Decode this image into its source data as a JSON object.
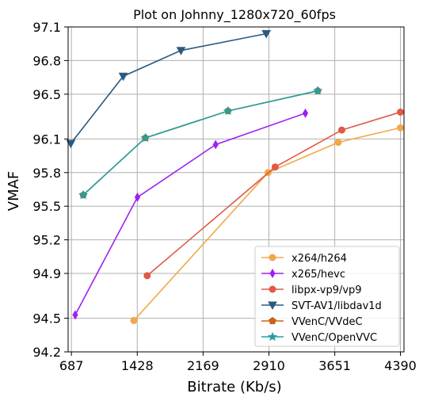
{
  "chart_data": {
    "type": "line",
    "title": "Plot on Johnny_1280x720_60fps",
    "xlabel": "Bitrate (Kb/s)",
    "ylabel": "VMAF",
    "xlim": [
      650,
      4430
    ],
    "ylim": [
      94.2,
      97.1
    ],
    "xticks": [
      687,
      1428,
      2169,
      2910,
      3651,
      4390
    ],
    "yticks": [
      94.2,
      94.5,
      94.9,
      95.2,
      95.5,
      95.8,
      96.1,
      96.5,
      96.8,
      97.1
    ],
    "grid": true,
    "legend_position": "lower-right",
    "series": [
      {
        "name": "x264/h264",
        "color": "#f0a848",
        "marker": "circle",
        "x": [
          1390,
          2900,
          3690,
          4390
        ],
        "y": [
          94.48,
          95.8,
          96.07,
          96.2
        ]
      },
      {
        "name": "x265/hevc",
        "color": "#a020f0",
        "marker": "thin-diamond",
        "x": [
          730,
          1430,
          2310,
          3320
        ],
        "y": [
          94.53,
          95.58,
          96.05,
          96.33
        ]
      },
      {
        "name": "libpx-vp9/vp9",
        "color": "#e05a45",
        "marker": "circle",
        "x": [
          1540,
          2980,
          3730,
          4390
        ],
        "y": [
          94.88,
          95.85,
          96.18,
          96.34
        ]
      },
      {
        "name": "SVT-AV1/libdav1d",
        "color": "#2a5a80",
        "marker": "triangle-down",
        "x": [
          680,
          1270,
          1920,
          2880
        ],
        "y": [
          96.06,
          96.66,
          96.89,
          97.04
        ]
      },
      {
        "name": "VVenC/VVdeC",
        "color": "#c86418",
        "marker": "pentagon",
        "x": [
          820,
          1520,
          2450,
          3460
        ],
        "y": [
          95.6,
          96.11,
          96.35,
          96.53
        ]
      },
      {
        "name": "VVenC/OpenVVC",
        "color": "#22a0a0",
        "marker": "star",
        "x": [
          820,
          1520,
          2450,
          3460
        ],
        "y": [
          95.6,
          96.11,
          96.35,
          96.53
        ]
      }
    ]
  }
}
